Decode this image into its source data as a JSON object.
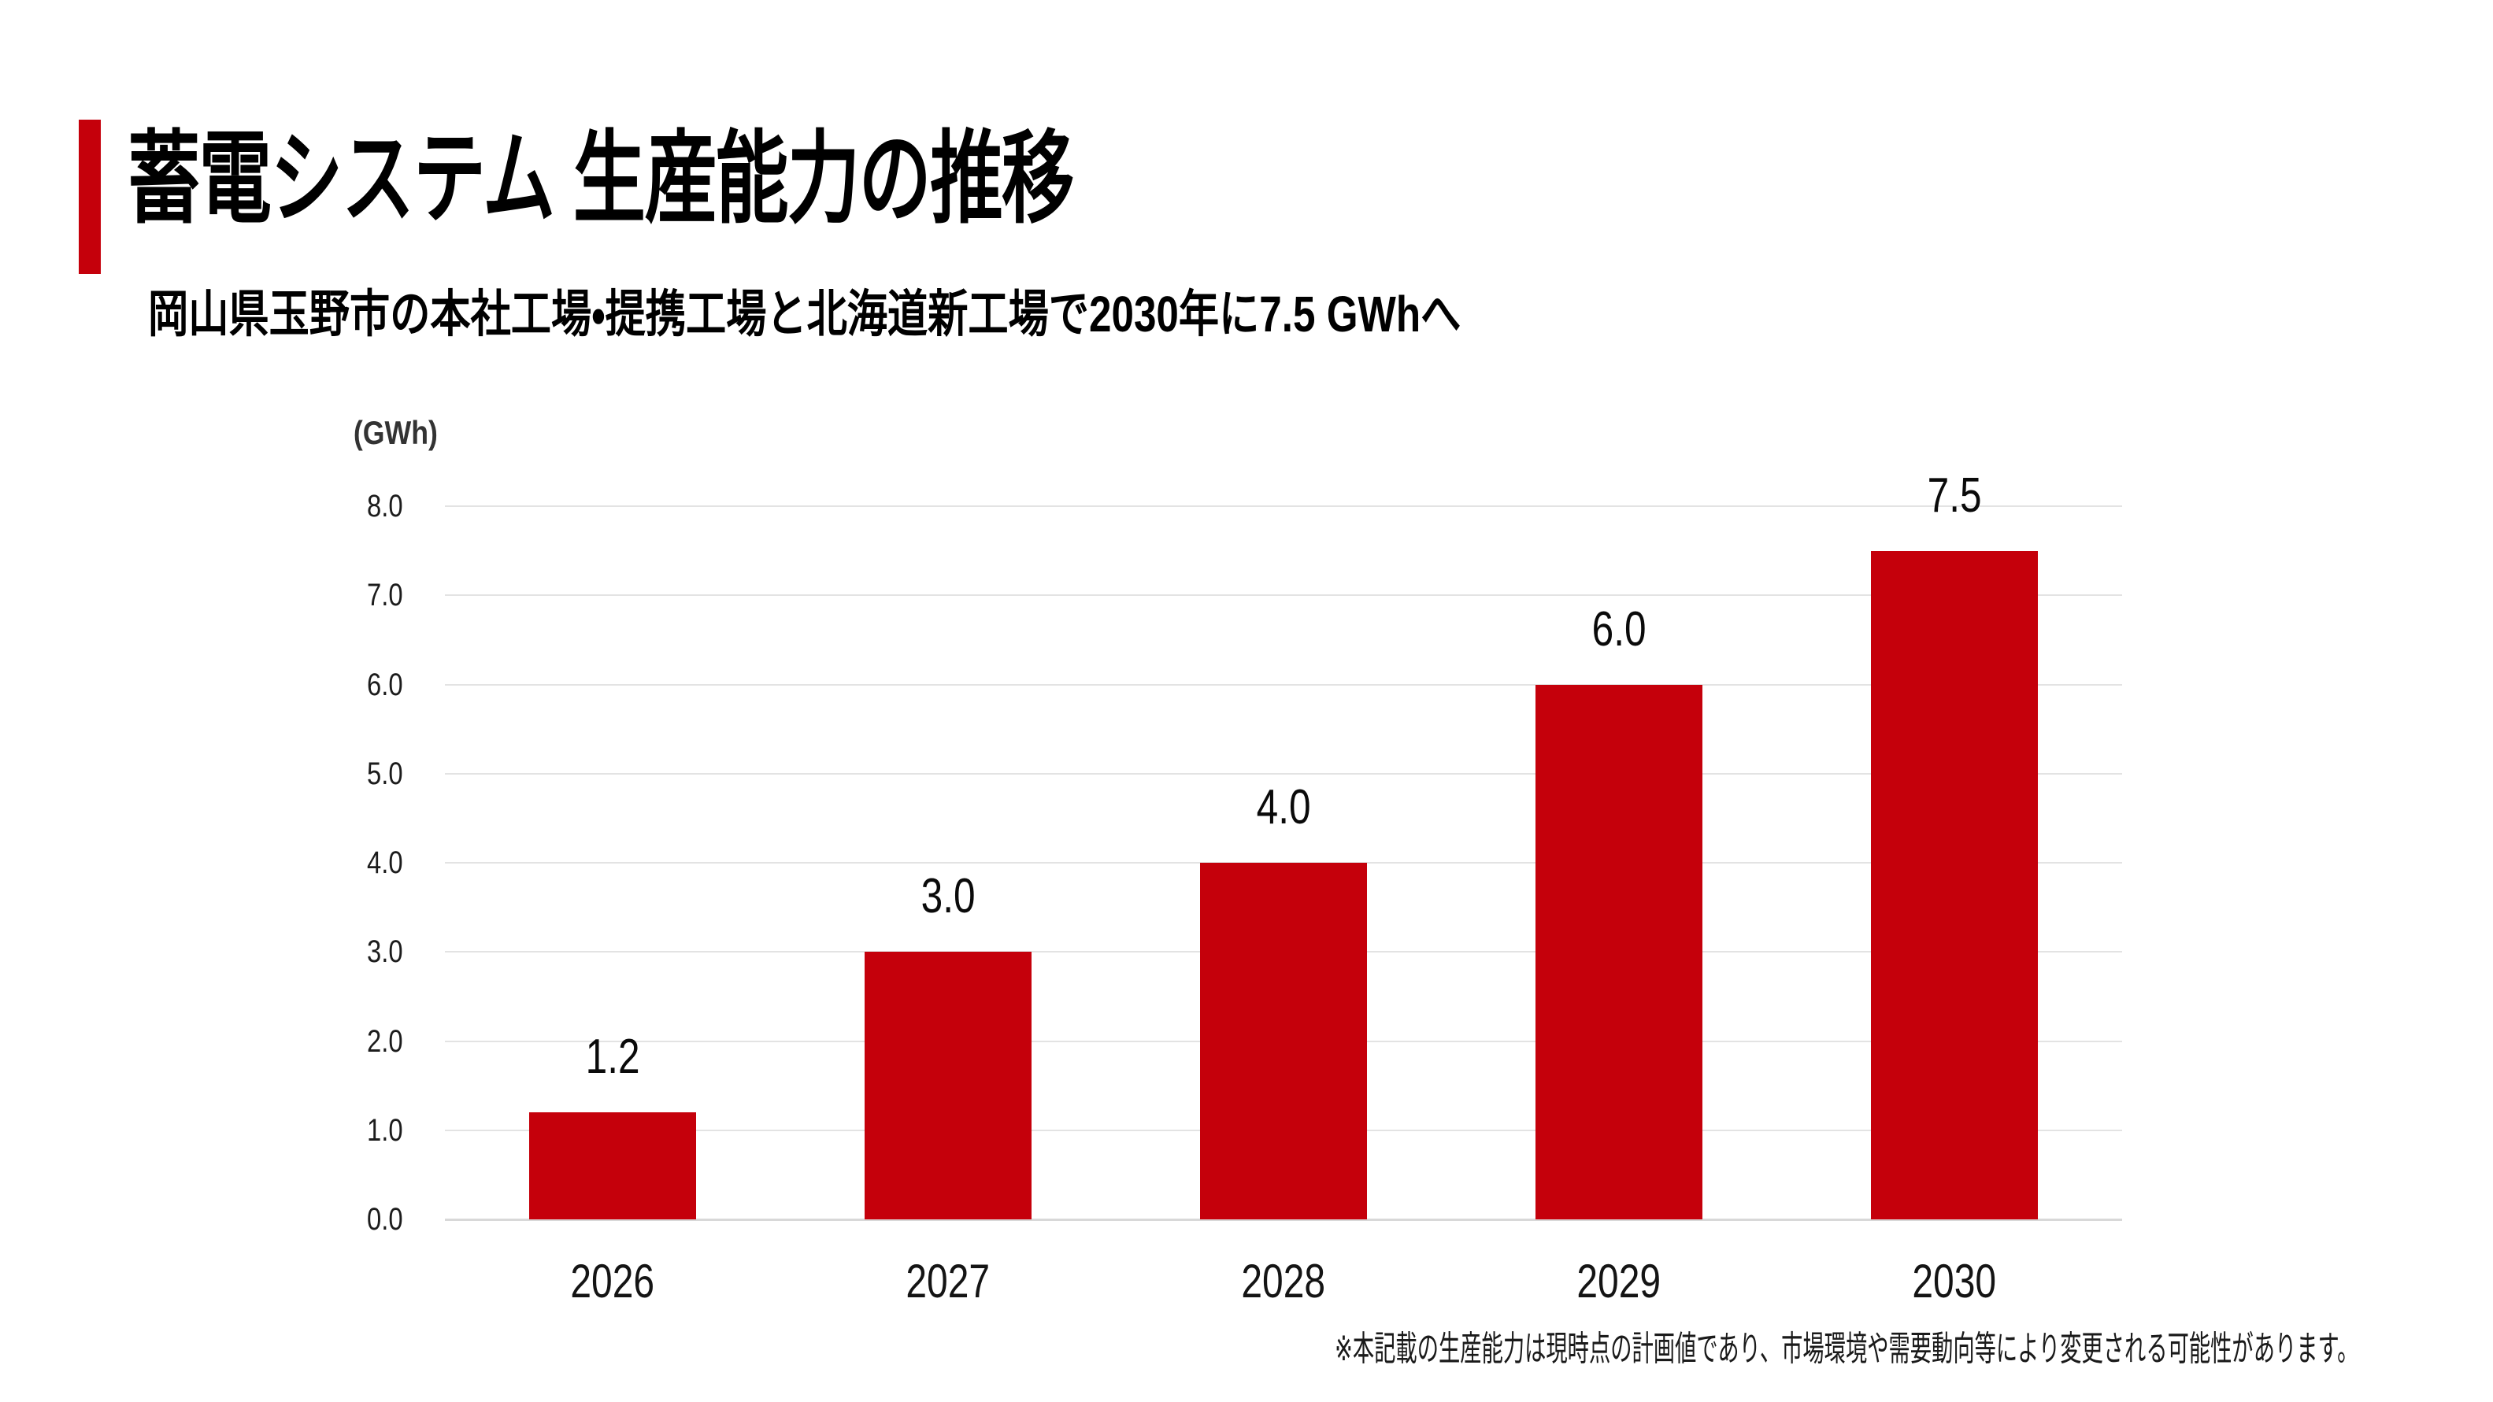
{
  "slide": {
    "background": "#FFFFFF"
  },
  "header": {
    "title": "蓄電システム 生産能力の推移",
    "subtitle": "岡山県玉野市の本社工場・提携工場と北海道新工場で2030年に7.5 GWhへ",
    "accent_color": "#C5000B"
  },
  "chart_data": {
    "type": "bar",
    "title": "蓄電システム 生産能力の推移",
    "unit_label": "(GWh)",
    "categories": [
      "2026",
      "2027",
      "2028",
      "2029",
      "2030"
    ],
    "values": [
      1.2,
      3.0,
      4.0,
      6.0,
      7.5
    ],
    "value_labels": [
      "1.2",
      "3.0",
      "4.0",
      "6.0",
      "7.5"
    ],
    "yticks": [
      "8.0",
      "7.0",
      "6.0",
      "5.0",
      "4.0",
      "3.0",
      "2.0",
      "1.0",
      "0.0"
    ],
    "ylim": [
      0.0,
      8.0
    ],
    "grid": true,
    "legend": "none",
    "bar_color": "#C5000B",
    "gridline_color": "#E3E3E3",
    "baseline_color": "#D8D8D8"
  },
  "footer": {
    "note": "※本記載の生産能力は現時点の計画値であり、市場環境や需要動向等により変更される可能性があります。"
  }
}
